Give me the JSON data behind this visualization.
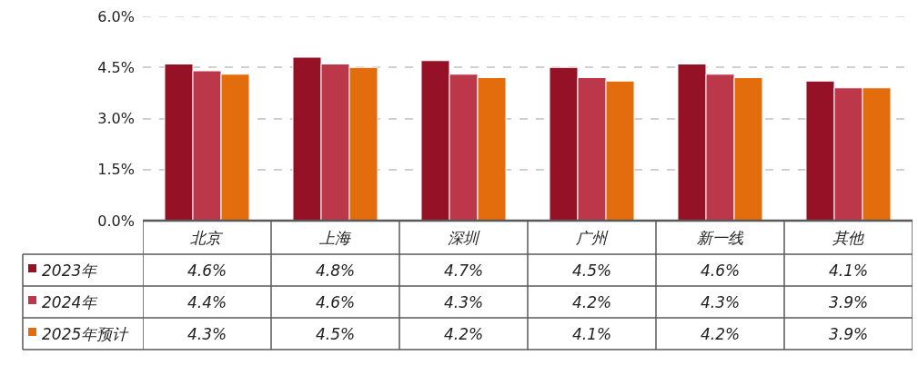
{
  "chart_data": {
    "type": "bar",
    "categories": [
      "北京",
      "上海",
      "深圳",
      "广州",
      "新一线",
      "其他"
    ],
    "series": [
      {
        "name": "2023年",
        "color": "#951226",
        "values": [
          4.6,
          4.8,
          4.7,
          4.5,
          4.6,
          4.1
        ],
        "value_labels": [
          "4.6%",
          "4.8%",
          "4.7%",
          "4.5%",
          "4.6%",
          "4.1%"
        ]
      },
      {
        "name": "2024年",
        "color": "#bd374b",
        "values": [
          4.4,
          4.6,
          4.3,
          4.2,
          4.3,
          3.9
        ],
        "value_labels": [
          "4.4%",
          "4.6%",
          "4.3%",
          "4.2%",
          "4.3%",
          "3.9%"
        ]
      },
      {
        "name": "2025年预计",
        "color": "#e36c0c",
        "values": [
          4.3,
          4.5,
          4.2,
          4.1,
          4.2,
          3.9
        ],
        "value_labels": [
          "4.3%",
          "4.5%",
          "4.2%",
          "4.1%",
          "4.2%",
          "3.9%"
        ]
      }
    ],
    "ylim": [
      0,
      6
    ],
    "yticks": [
      {
        "value": 0,
        "label": "0.0%"
      },
      {
        "value": 1.5,
        "label": "1.5%"
      },
      {
        "value": 3,
        "label": "3.0%"
      },
      {
        "value": 4.5,
        "label": "4.5%"
      },
      {
        "value": 6,
        "label": "6.0%"
      }
    ],
    "grid": "y",
    "legend": "bottom left"
  }
}
